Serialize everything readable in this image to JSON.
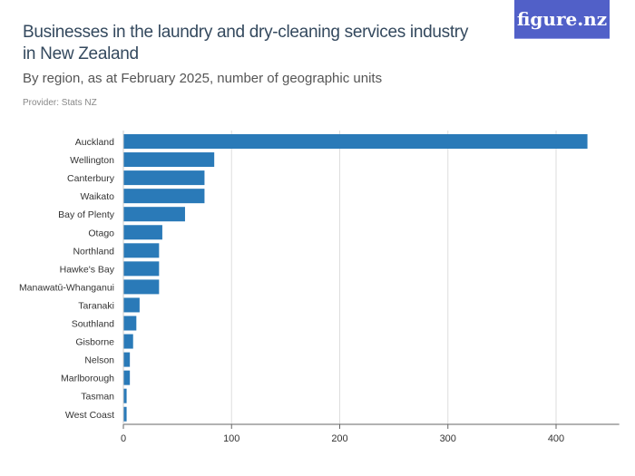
{
  "logo": "figure.nz",
  "chart_data": {
    "type": "bar",
    "orientation": "horizontal",
    "title": "Businesses in the laundry and dry-cleaning services industry in New Zealand",
    "subtitle": "By region, as at February 2025, number of geographic units",
    "provider": "Provider: Stats NZ",
    "categories": [
      "Auckland",
      "Wellington",
      "Canterbury",
      "Waikato",
      "Bay of Plenty",
      "Otago",
      "Northland",
      "Hawke's Bay",
      "Manawatū-Whanganui",
      "Taranaki",
      "Southland",
      "Gisborne",
      "Nelson",
      "Marlborough",
      "Tasman",
      "West Coast"
    ],
    "values": [
      429,
      84,
      75,
      75,
      57,
      36,
      33,
      33,
      33,
      15,
      12,
      9,
      6,
      6,
      3,
      3
    ],
    "xlim": [
      0,
      450
    ],
    "xticks": [
      0,
      100,
      200,
      300,
      400
    ],
    "grid": true,
    "color": "#2a7ab8"
  }
}
